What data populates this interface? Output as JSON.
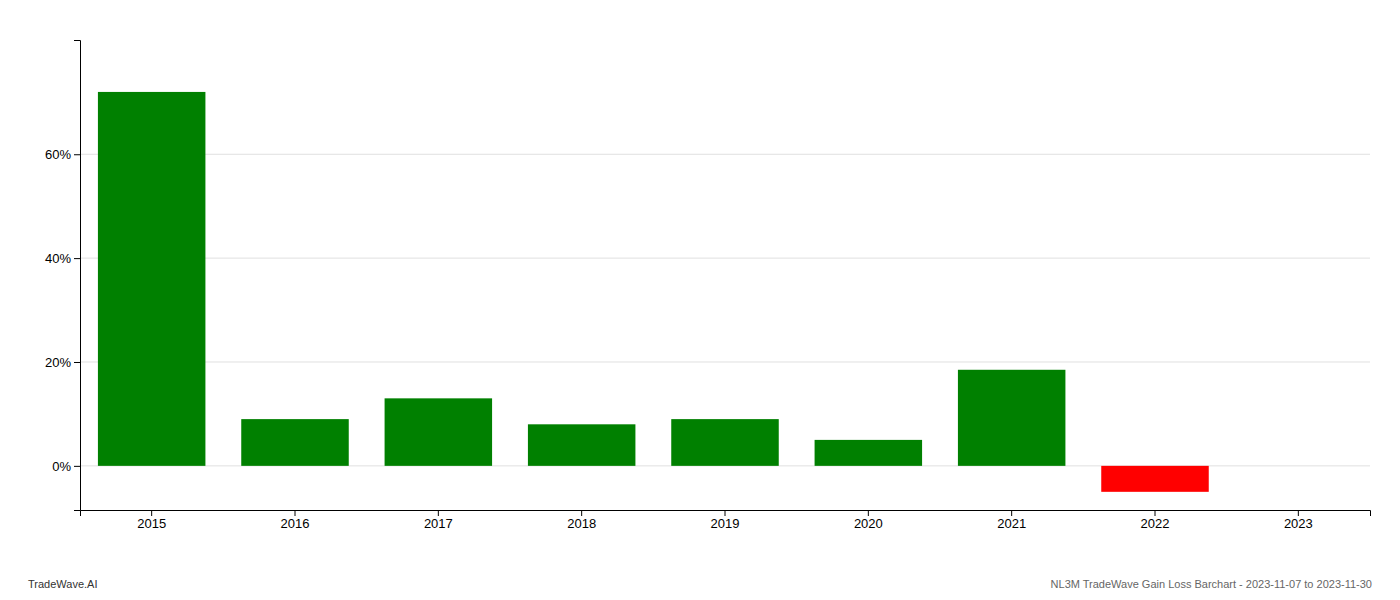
{
  "chart_data": {
    "type": "bar",
    "categories": [
      "2015",
      "2016",
      "2017",
      "2018",
      "2019",
      "2020",
      "2021",
      "2022",
      "2023"
    ],
    "values": [
      0.72,
      0.09,
      0.13,
      0.08,
      0.09,
      0.05,
      0.185,
      -0.05,
      null
    ],
    "colors": [
      "#008000",
      "#008000",
      "#008000",
      "#008000",
      "#008000",
      "#008000",
      "#008000",
      "#ff0000",
      null
    ],
    "ylim": [
      -0.085,
      0.82
    ],
    "yticks": [
      {
        "value": 0.0,
        "label": "0%"
      },
      {
        "value": 0.2,
        "label": "20%"
      },
      {
        "value": 0.4,
        "label": "40%"
      },
      {
        "value": 0.6,
        "label": "60%"
      }
    ],
    "grid": true,
    "annotations": [
      "TradeWave.AI",
      "NL3M TradeWave Gain Loss Barchart - 2023-11-07 to 2023-11-30"
    ]
  }
}
